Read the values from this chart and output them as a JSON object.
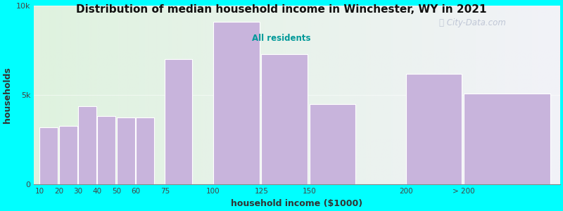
{
  "title": "Distribution of median household income in Winchester, WY in 2021",
  "subtitle": "All residents",
  "xlabel": "household income ($1000)",
  "ylabel": "households",
  "background_color": "#00FFFF",
  "plot_bg_left": "#dff2df",
  "plot_bg_right": "#f2f2f8",
  "bar_color": "#c8b4dc",
  "categories": [
    "10",
    "20",
    "30",
    "40",
    "50",
    "60",
    "75",
    "100",
    "125",
    "150",
    "200",
    "> 200"
  ],
  "bar_lefts": [
    10,
    20,
    30,
    40,
    50,
    60,
    75,
    100,
    125,
    150,
    200,
    230
  ],
  "bar_widths": [
    9.5,
    9.5,
    9.5,
    9.5,
    9.5,
    9.5,
    14,
    24,
    24,
    24,
    29,
    45
  ],
  "bar_heights": [
    3200,
    3300,
    4400,
    3850,
    3750,
    3750,
    7000,
    9100,
    7300,
    4500,
    6200,
    5100
  ],
  "tick_positions": [
    10,
    20,
    30,
    40,
    50,
    60,
    75,
    100,
    125,
    150,
    200,
    230
  ],
  "tick_labels": [
    "10",
    "20",
    "30",
    "40",
    "50",
    "60",
    "75",
    "100",
    "125",
    "150",
    "200",
    "> 200"
  ],
  "xlim": [
    7,
    280
  ],
  "ylim": [
    0,
    10000
  ],
  "ytick_vals": [
    0,
    5000,
    10000
  ],
  "ytick_labels": [
    "0",
    "5k",
    "10k"
  ],
  "watermark": "City-Data.com",
  "watermark_icon": "ⓘ"
}
